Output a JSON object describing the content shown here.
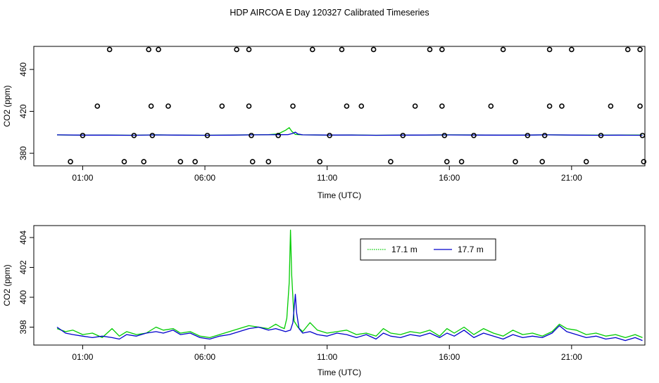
{
  "title": "HDP AIRCOA E  Day 120327  Calibrated Timeseries",
  "chart_data": [
    {
      "type": "scatter",
      "xlabel": "Time (UTC)",
      "ylabel": "CO2 (ppm)",
      "x_unit": "hours UTC",
      "xlim": [
        -1.0,
        24.0
      ],
      "ylim": [
        368,
        482
      ],
      "xticks": [
        {
          "value": 1,
          "label": "01:00"
        },
        {
          "value": 6,
          "label": "06:00"
        },
        {
          "value": 11,
          "label": "11:00"
        },
        {
          "value": 16,
          "label": "16:00"
        },
        {
          "value": 21,
          "label": "21:00"
        }
      ],
      "yticks": [
        {
          "value": 380,
          "label": "380"
        },
        {
          "value": 420,
          "label": "420"
        },
        {
          "value": 460,
          "label": "460"
        }
      ],
      "grid": false,
      "series": [
        {
          "color": "#00cc00",
          "style": "line",
          "x": [
            -0.05,
            1.0,
            2.0,
            3.0,
            4.0,
            5.0,
            6.0,
            7.0,
            7.8,
            8.6,
            9.0,
            9.3,
            9.45,
            9.55,
            9.7,
            10.0,
            11.0,
            12.0,
            13.0,
            14.0,
            15.0,
            16.0,
            17.0,
            18.0,
            19.0,
            20.0,
            21.0,
            22.0,
            23.0,
            23.9
          ],
          "y": [
            397.5,
            397.3,
            397.4,
            397.2,
            397.6,
            397.3,
            397.2,
            397.4,
            397.6,
            397.8,
            398.5,
            402.0,
            404.5,
            401.0,
            398.0,
            397.6,
            397.4,
            397.5,
            397.2,
            397.4,
            397.4,
            397.6,
            397.5,
            397.3,
            397.4,
            397.6,
            397.4,
            397.3,
            397.4,
            397.4
          ]
        },
        {
          "color": "#0000cc",
          "style": "line",
          "x": [
            -0.05,
            1.0,
            2.0,
            3.0,
            4.0,
            5.0,
            6.0,
            7.0,
            8.0,
            9.0,
            9.4,
            9.6,
            9.7,
            9.8,
            10.0,
            11.0,
            12.0,
            13.0,
            14.0,
            15.0,
            16.0,
            17.0,
            18.0,
            19.0,
            20.0,
            21.0,
            22.0,
            23.0,
            23.9
          ],
          "y": [
            397.6,
            397.3,
            397.3,
            397.2,
            397.5,
            397.3,
            397.2,
            397.3,
            397.6,
            397.7,
            397.8,
            399.0,
            400.2,
            398.4,
            397.6,
            397.4,
            397.4,
            397.2,
            397.3,
            397.4,
            397.5,
            397.4,
            397.3,
            397.3,
            397.6,
            397.4,
            397.2,
            397.3,
            397.2
          ]
        },
        {
          "color": "#000000",
          "style": "points",
          "x": [
            0.5,
            1.0,
            1.6,
            2.1,
            2.7,
            3.1,
            3.5,
            3.7,
            3.8,
            3.85,
            4.1,
            4.5,
            5.0,
            5.6,
            6.1,
            6.7,
            7.3,
            7.8,
            7.8,
            7.9,
            7.95,
            8.6,
            9.0,
            9.6,
            10.4,
            10.7,
            11.1,
            11.6,
            11.8,
            12.4,
            12.9,
            13.6,
            14.1,
            14.6,
            15.2,
            15.7,
            15.7,
            15.8,
            15.9,
            16.5,
            17.0,
            17.7,
            18.2,
            18.7,
            19.2,
            19.8,
            19.9,
            20.1,
            20.1,
            20.6,
            21.0,
            21.6,
            22.2,
            22.6,
            23.3,
            23.8,
            23.8,
            23.9,
            23.95
          ],
          "y": [
            372,
            397,
            425,
            479,
            372,
            397,
            372,
            479,
            425,
            397,
            479,
            425,
            372,
            372,
            397,
            425,
            479,
            479,
            425,
            397,
            372,
            372,
            397,
            425,
            479,
            372,
            397,
            479,
            425,
            425,
            479,
            372,
            397,
            425,
            479,
            479,
            425,
            397,
            372,
            372,
            397,
            425,
            479,
            372,
            397,
            372,
            397,
            425,
            479,
            425,
            479,
            372,
            397,
            425,
            479,
            479,
            425,
            397,
            372
          ]
        }
      ]
    },
    {
      "type": "line",
      "xlabel": "Time (UTC)",
      "ylabel": "CO2 (ppm)",
      "x_unit": "hours UTC",
      "xlim": [
        -1.0,
        24.0
      ],
      "ylim": [
        396.8,
        404.8
      ],
      "xticks": [
        {
          "value": 1,
          "label": "01:00"
        },
        {
          "value": 6,
          "label": "06:00"
        },
        {
          "value": 11,
          "label": "11:00"
        },
        {
          "value": 16,
          "label": "16:00"
        },
        {
          "value": 21,
          "label": "21:00"
        }
      ],
      "yticks": [
        {
          "value": 398,
          "label": "398"
        },
        {
          "value": 400,
          "label": "400"
        },
        {
          "value": 402,
          "label": "402"
        },
        {
          "value": 404,
          "label": "404"
        }
      ],
      "grid": false,
      "legend": {
        "placement": "top-right"
      },
      "series": [
        {
          "name": "17.1 m",
          "color": "#00cc00",
          "x": [
            -0.05,
            0.3,
            0.6,
            1.0,
            1.4,
            1.8,
            2.2,
            2.5,
            2.8,
            3.2,
            3.6,
            4.0,
            4.3,
            4.7,
            5.0,
            5.4,
            5.8,
            6.2,
            6.6,
            7.0,
            7.4,
            7.8,
            8.2,
            8.6,
            8.9,
            9.1,
            9.25,
            9.35,
            9.45,
            9.5,
            9.55,
            9.65,
            9.8,
            10.0,
            10.3,
            10.6,
            11.0,
            11.4,
            11.8,
            12.2,
            12.6,
            13.0,
            13.3,
            13.6,
            14.0,
            14.4,
            14.8,
            15.2,
            15.6,
            15.9,
            16.2,
            16.6,
            17.0,
            17.4,
            17.8,
            18.2,
            18.6,
            19.0,
            19.4,
            19.8,
            20.2,
            20.5,
            20.8,
            21.2,
            21.6,
            22.0,
            22.4,
            22.8,
            23.2,
            23.6,
            23.9
          ],
          "y": [
            397.9,
            397.7,
            397.8,
            397.5,
            397.6,
            397.3,
            397.9,
            397.4,
            397.7,
            397.5,
            397.6,
            398.0,
            397.8,
            397.9,
            397.6,
            397.7,
            397.4,
            397.3,
            397.5,
            397.7,
            397.9,
            398.1,
            398.0,
            397.9,
            398.2,
            398.0,
            397.9,
            398.6,
            401.0,
            404.5,
            401.5,
            398.4,
            398.0,
            397.7,
            398.3,
            397.8,
            397.6,
            397.7,
            397.8,
            397.5,
            397.6,
            397.4,
            397.9,
            397.6,
            397.5,
            397.7,
            397.6,
            397.8,
            397.4,
            397.9,
            397.6,
            398.0,
            397.5,
            397.9,
            397.6,
            397.4,
            397.8,
            397.5,
            397.6,
            397.4,
            397.7,
            398.2,
            397.9,
            397.8,
            397.5,
            397.6,
            397.4,
            397.5,
            397.3,
            397.5,
            397.3
          ]
        },
        {
          "name": "17.7 m",
          "color": "#0000cc",
          "x": [
            -0.05,
            0.3,
            0.6,
            1.0,
            1.4,
            1.8,
            2.2,
            2.5,
            2.8,
            3.2,
            3.6,
            4.0,
            4.3,
            4.7,
            5.0,
            5.4,
            5.8,
            6.2,
            6.6,
            7.0,
            7.4,
            7.8,
            8.2,
            8.6,
            8.9,
            9.1,
            9.3,
            9.5,
            9.6,
            9.7,
            9.75,
            9.85,
            10.0,
            10.3,
            10.6,
            11.0,
            11.4,
            11.8,
            12.2,
            12.6,
            13.0,
            13.3,
            13.6,
            14.0,
            14.4,
            14.8,
            15.2,
            15.6,
            15.9,
            16.2,
            16.6,
            17.0,
            17.4,
            17.8,
            18.2,
            18.6,
            19.0,
            19.4,
            19.8,
            20.2,
            20.5,
            20.8,
            21.2,
            21.6,
            22.0,
            22.4,
            22.8,
            23.2,
            23.6,
            23.9
          ],
          "y": [
            398.0,
            397.6,
            397.5,
            397.4,
            397.3,
            397.4,
            397.3,
            397.2,
            397.5,
            397.4,
            397.6,
            397.7,
            397.6,
            397.8,
            397.5,
            397.6,
            397.3,
            397.2,
            397.4,
            397.5,
            397.7,
            397.9,
            398.0,
            397.8,
            397.9,
            397.8,
            397.7,
            397.8,
            398.3,
            400.2,
            399.0,
            397.9,
            397.6,
            397.7,
            397.5,
            397.4,
            397.6,
            397.5,
            397.3,
            397.5,
            397.2,
            397.6,
            397.4,
            397.3,
            397.5,
            397.4,
            397.6,
            397.3,
            397.6,
            397.4,
            397.8,
            397.3,
            397.6,
            397.4,
            397.2,
            397.5,
            397.3,
            397.4,
            397.3,
            397.6,
            398.1,
            397.7,
            397.5,
            397.3,
            397.4,
            397.2,
            397.3,
            397.1,
            397.3,
            397.1
          ]
        }
      ]
    }
  ]
}
